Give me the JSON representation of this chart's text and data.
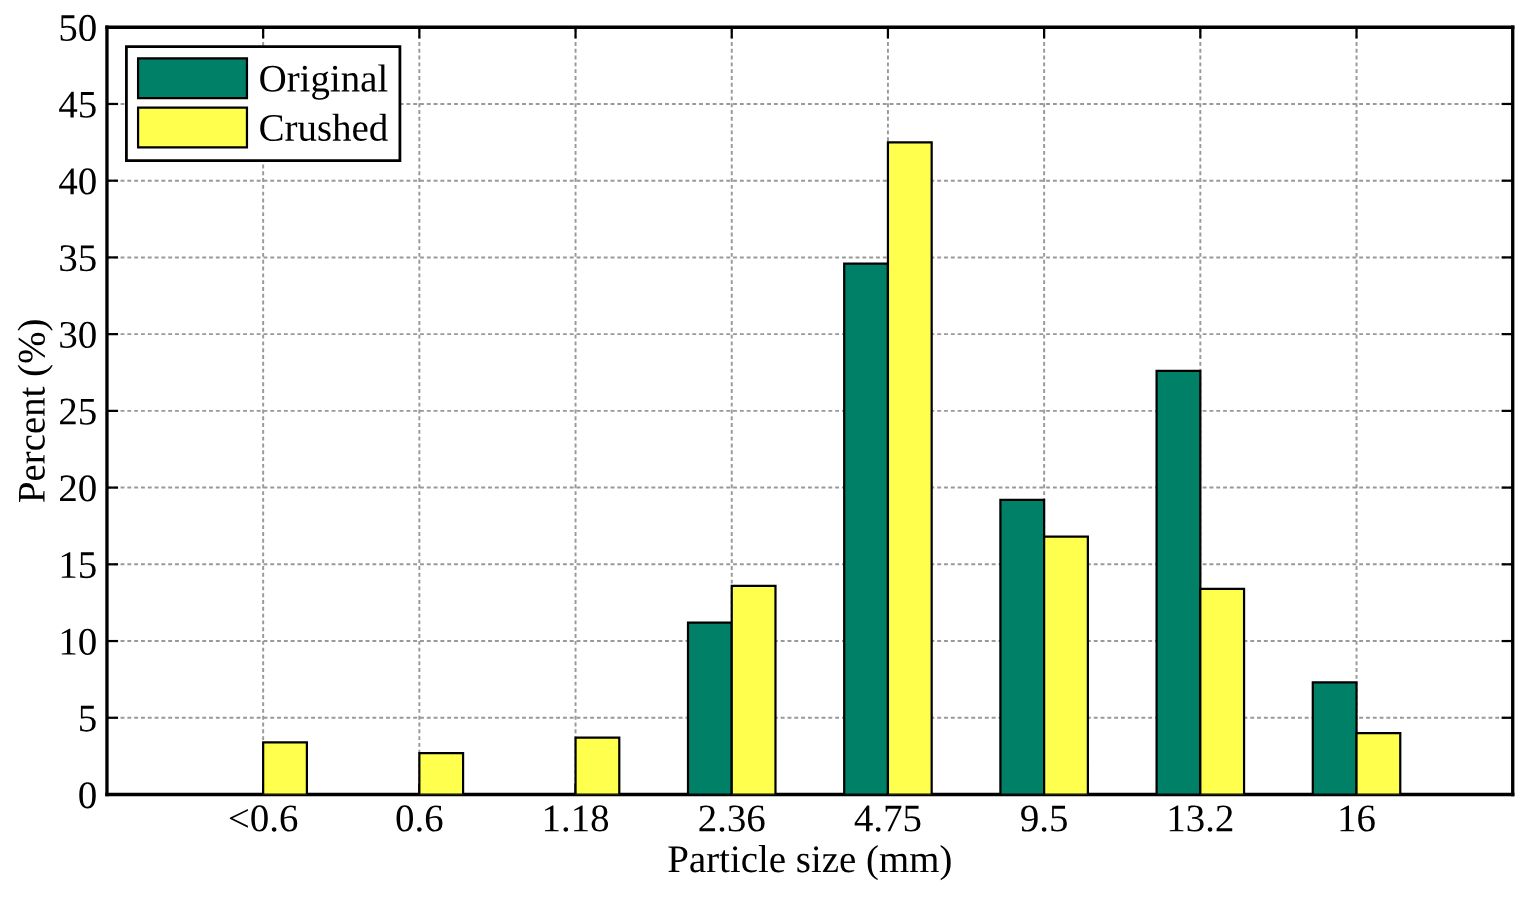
{
  "chart_data": {
    "type": "bar",
    "xlabel": "Particle size (mm)",
    "ylabel": "Percent (%)",
    "categories": [
      "<0.6",
      "0.6",
      "1.18",
      "2.36",
      "4.75",
      "9.5",
      "13.2",
      "16"
    ],
    "series": [
      {
        "name": "Original",
        "color": "#008066",
        "values": [
          null,
          null,
          null,
          11.2,
          34.6,
          19.2,
          27.6,
          7.3
        ]
      },
      {
        "name": "Crushed",
        "color": "#ffff4d",
        "values": [
          3.4,
          2.7,
          3.7,
          13.6,
          42.5,
          16.8,
          13.4,
          4.0
        ]
      }
    ],
    "ylim": [
      0,
      50
    ],
    "yticks": [
      0,
      5,
      10,
      15,
      20,
      25,
      30,
      35,
      40,
      45,
      50
    ],
    "grid": true,
    "legend": "top left"
  }
}
